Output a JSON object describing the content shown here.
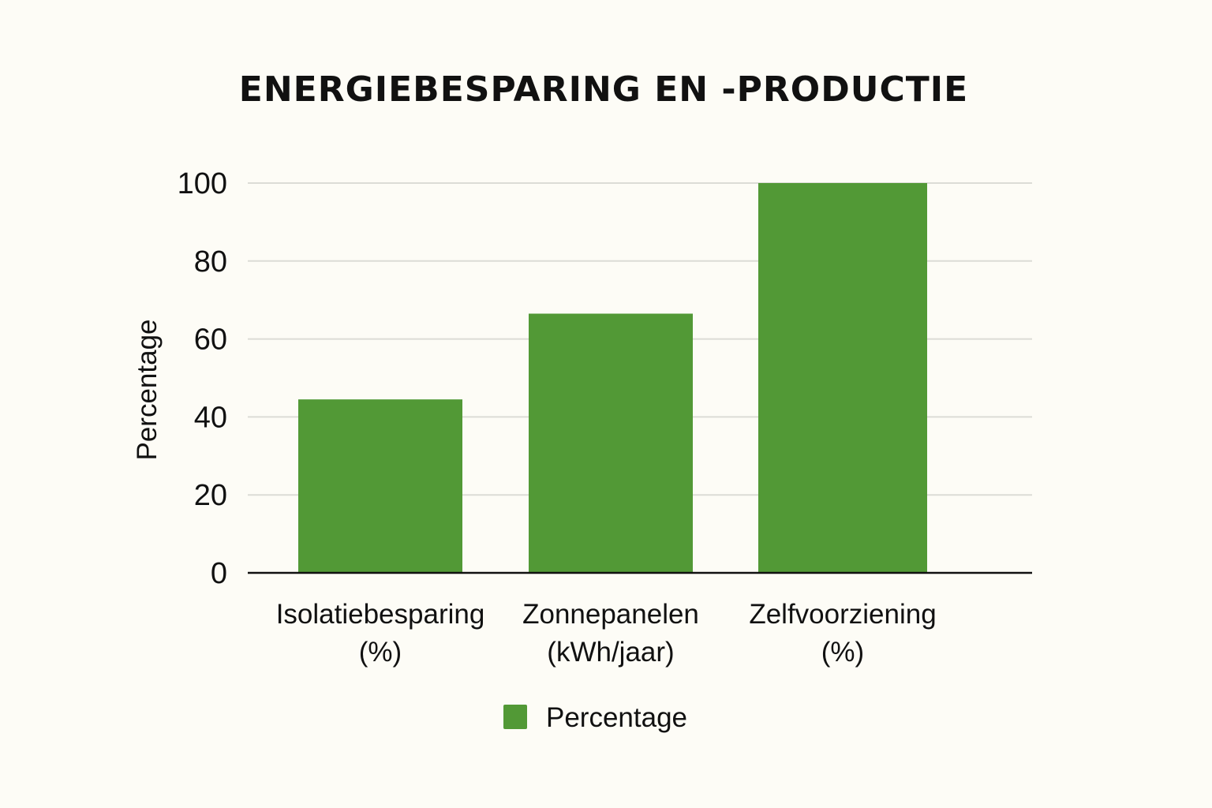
{
  "chart_data": {
    "type": "bar",
    "title": "ENERGIEBESPARING EN -PRODUCTIE",
    "xlabel": "",
    "ylabel": "Percentage",
    "categories": [
      [
        "Isolatiebesparing",
        "(%)"
      ],
      [
        "Zonnepanelen",
        "(kWh/jaar)"
      ],
      [
        "Zelfvoorziening",
        "(%)"
      ]
    ],
    "series": [
      {
        "name": "Percentage",
        "color": "#529936",
        "values": [
          44.5,
          66.5,
          100
        ]
      }
    ],
    "ylim": [
      0,
      100
    ],
    "yticks": [
      "0",
      "20",
      "40",
      "60",
      "80",
      "100"
    ],
    "grid": true,
    "legend_position": "bottom-center"
  },
  "colors": {
    "background": "#fdfcf6",
    "bar": "#529936",
    "grid": "#dcdcd6",
    "axis": "#111111"
  }
}
